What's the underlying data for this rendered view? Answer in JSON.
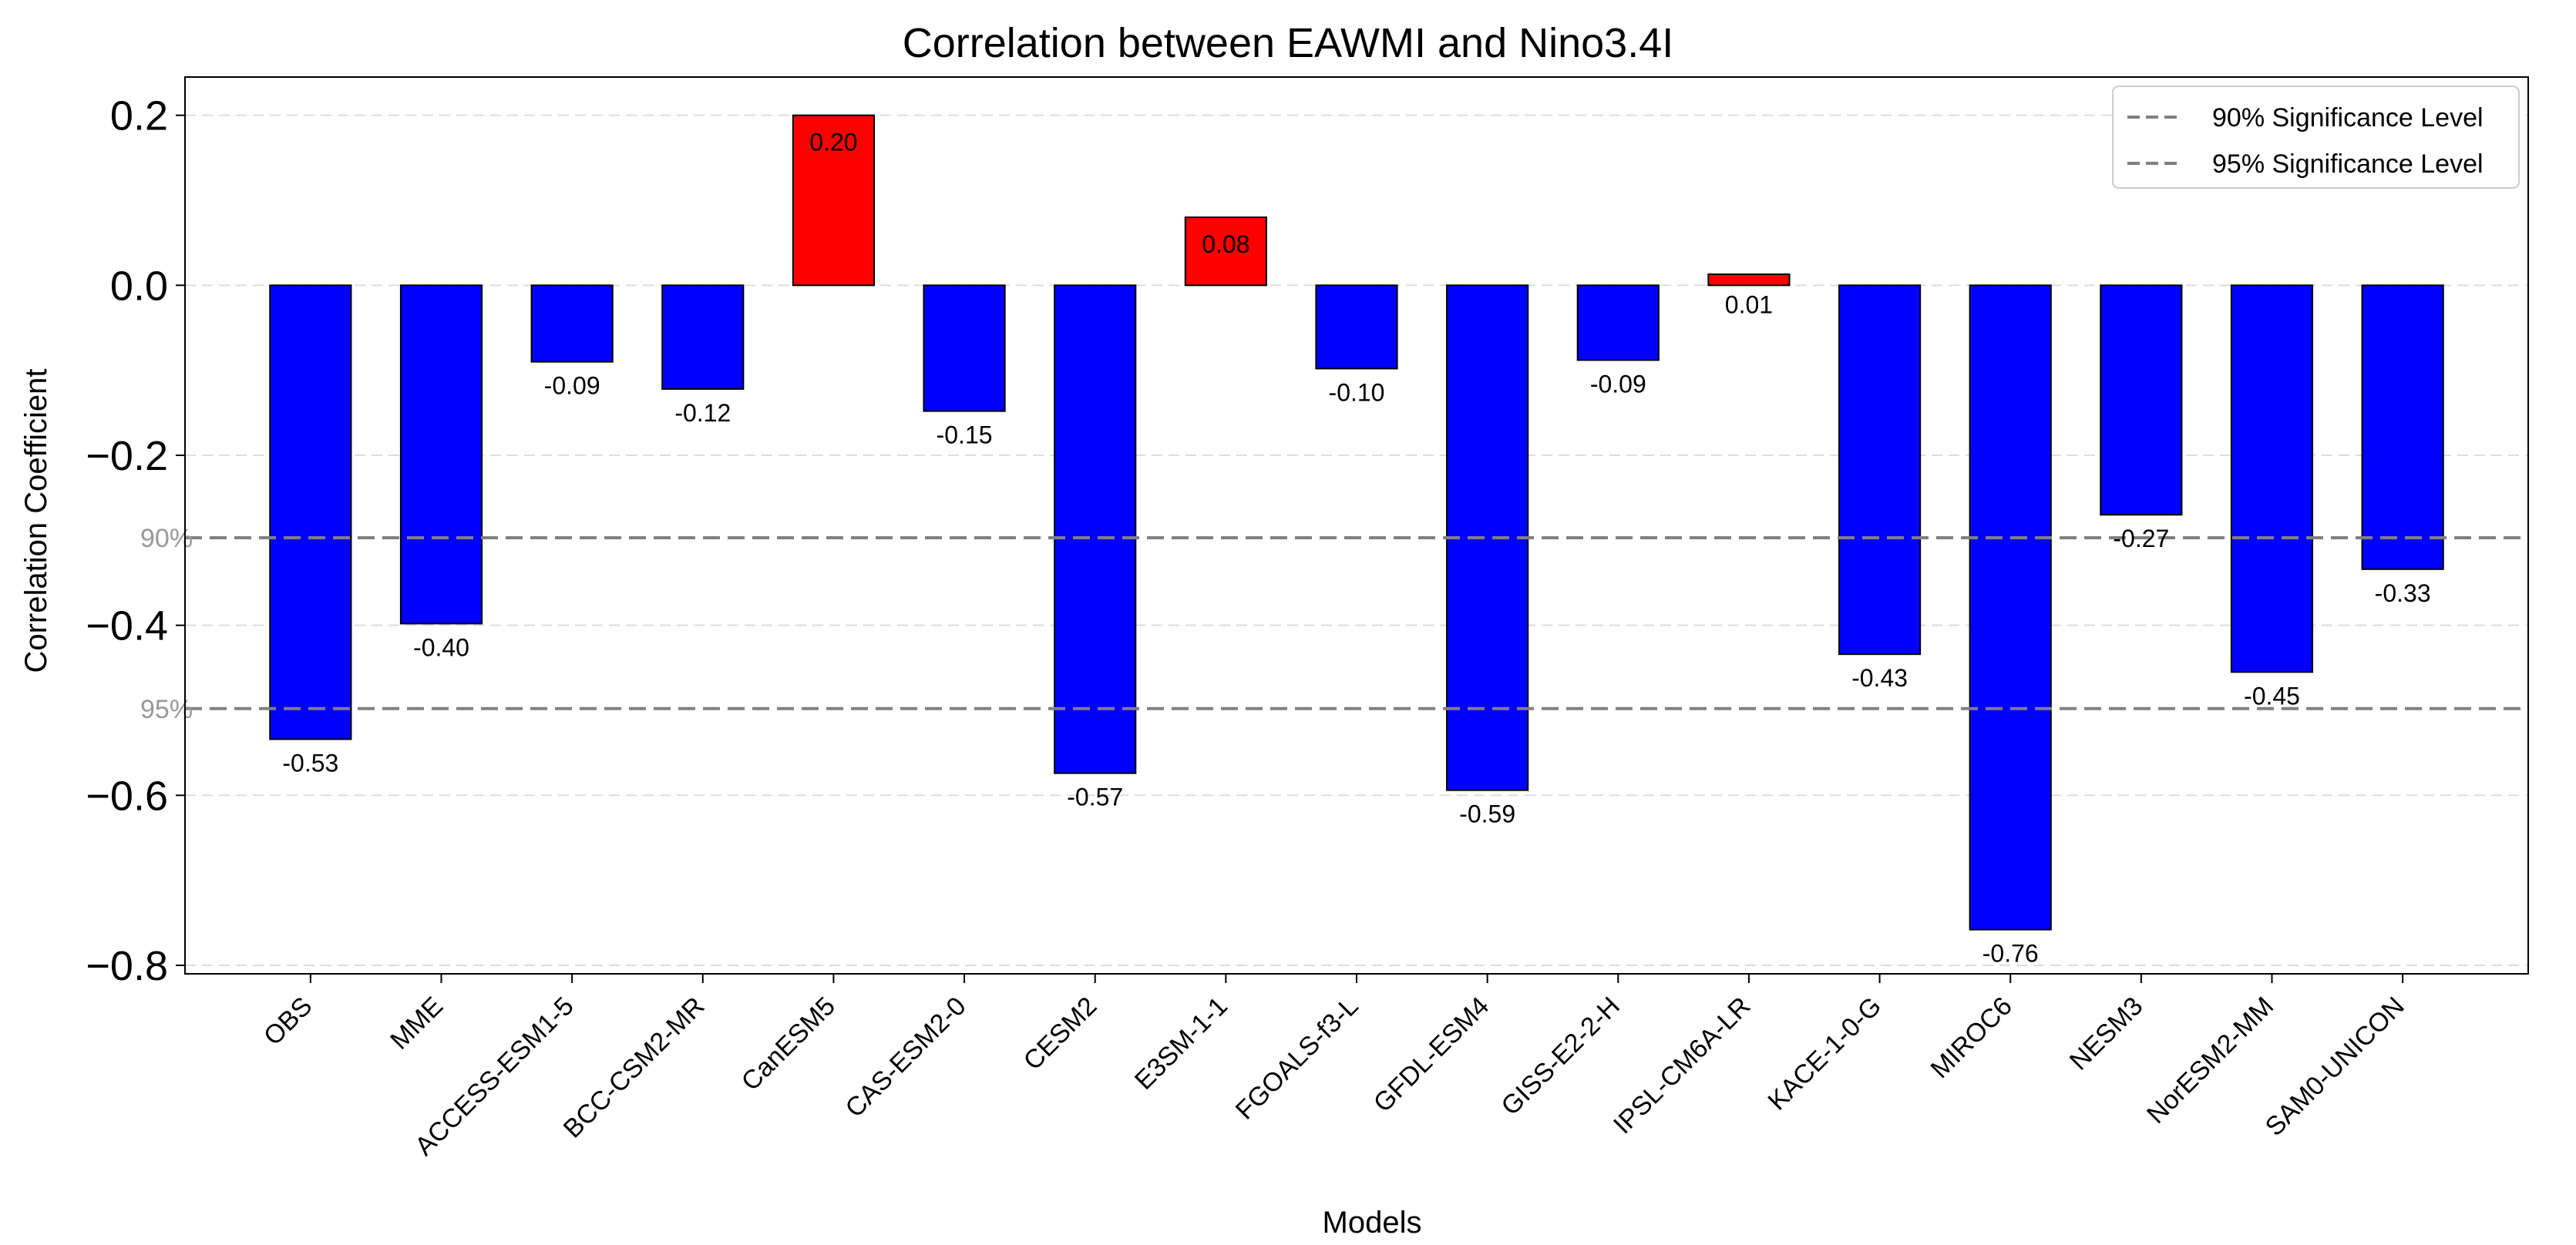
{
  "chart_data": {
    "type": "bar",
    "title": "Correlation between EAWMI and Nino3.4I",
    "xlabel": "Models",
    "ylabel": "Correlation Coefficient",
    "ylim": [
      -0.81,
      0.245
    ],
    "yticks": [
      0.2,
      0.0,
      -0.2,
      -0.4,
      -0.6,
      -0.8
    ],
    "ytick_labels": [
      "0.2",
      "0.0",
      "−0.2",
      "−0.4",
      "−0.6",
      "−0.8"
    ],
    "categories": [
      "OBS",
      "MME",
      "ACCESS-ESM1-5",
      "BCC-CSM2-MR",
      "CanESM5",
      "CAS-ESM2-0",
      "CESM2",
      "E3SM-1-1",
      "FGOALS-f3-L",
      "GFDL-ESM4",
      "GISS-E2-2-H",
      "IPSL-CM6A-LR",
      "KACE-1-0-G",
      "MIROC6",
      "NESM3",
      "NorESM2-MM",
      "SAM0-UNICON"
    ],
    "values": [
      -0.534,
      -0.398,
      -0.09,
      -0.122,
      0.2,
      -0.148,
      -0.574,
      0.08,
      -0.098,
      -0.594,
      -0.088,
      0.013,
      -0.434,
      -0.758,
      -0.27,
      -0.455,
      -0.334
    ],
    "value_labels": [
      "-0.53",
      "-0.40",
      "-0.09",
      "-0.12",
      "0.20",
      "-0.15",
      "-0.57",
      "0.08",
      "-0.10",
      "-0.59",
      "-0.09",
      "0.01",
      "-0.43",
      "-0.76",
      "-0.27",
      "-0.45",
      "-0.33"
    ],
    "positive_color": "#ff0000",
    "negative_color": "#0000ff",
    "grid": true,
    "significance_lines": [
      {
        "value": -0.297,
        "label": "90%",
        "legend": "90% Significance Level",
        "color": "#808080"
      },
      {
        "value": -0.498,
        "label": "95%",
        "legend": "95% Significance Level",
        "color": "#808080"
      }
    ],
    "legend_position": "top-right"
  }
}
